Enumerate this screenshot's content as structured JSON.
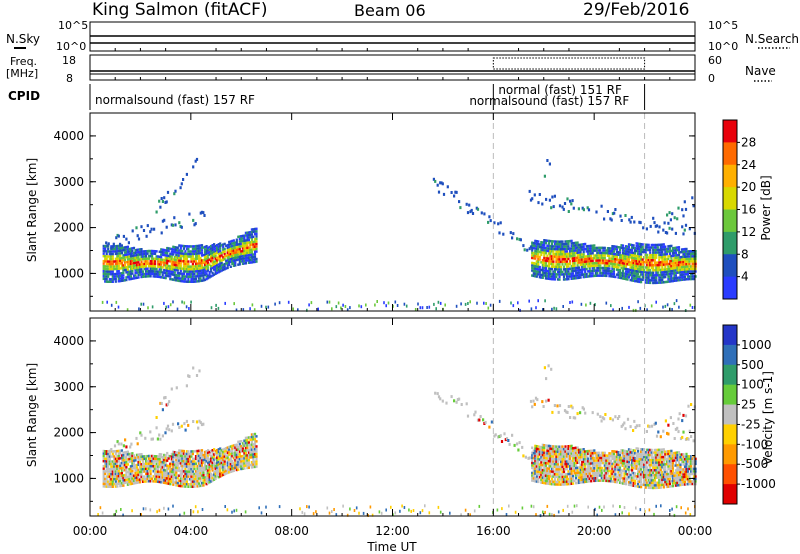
{
  "header": {
    "title": "King Salmon (fitACF)",
    "beam": "Beam 06",
    "date": "29/Feb/2016"
  },
  "status_panels": {
    "nsky_label": "N.Sky",
    "nsky_ticks": [
      "10^5",
      "10^0"
    ],
    "nsearch_label": "N.Search",
    "nsearch_ticks": [
      "10^5",
      "10^0"
    ],
    "freq_label_1": "Freq.",
    "freq_label_2": "[MHz]",
    "freq_ticks": [
      "18",
      "8"
    ],
    "nave_label": "Nave",
    "nave_ticks": [
      "60",
      "0"
    ],
    "cpid_label": "CPID",
    "cpid_entries": [
      {
        "text": "normalsound (fast) 157 RF",
        "start_hour": 0.0
      },
      {
        "text": "normal (fast) 151 RF",
        "start_hour": 16.0
      },
      {
        "text": "normalsound (fast) 157 RF",
        "start_hour": 16.0
      }
    ],
    "mode_change_hours": [
      16.0,
      22.0
    ]
  },
  "chart_data": [
    {
      "type": "heatmap",
      "quantity": "Power",
      "ylabel": "Slant Range [km]",
      "yticks": [
        "4000",
        "3000",
        "2000",
        "1000"
      ],
      "ylim": [
        180,
        4500
      ],
      "xlim_hours": [
        0,
        24
      ],
      "colorbar_label": "Power [dB]",
      "colorbar_ticks": [
        "28",
        "24",
        "20",
        "16",
        "12",
        "8",
        "4"
      ],
      "colorbar_colors": [
        "#e8000b",
        "#ff6a00",
        "#ffb000",
        "#d8d800",
        "#6cc83c",
        "#2f9c6a",
        "#1f4fbe",
        "#2a3cff"
      ],
      "echo_regions": [
        {
          "t0": 0.5,
          "t1": 6.6,
          "r0": 900,
          "r1": 2500
        },
        {
          "t0": 17.5,
          "t1": 24.0,
          "r0": 900,
          "r1": 2500
        },
        {
          "t0": 2.5,
          "t1": 4.5,
          "r0": 2600,
          "r1": 3500
        },
        {
          "t0": 0.2,
          "t1": 24.0,
          "r0": 200,
          "r1": 450
        }
      ]
    },
    {
      "type": "heatmap",
      "quantity": "Velocity",
      "ylabel": "Slant Range [km]",
      "yticks": [
        "4000",
        "3000",
        "2000",
        "1000"
      ],
      "ylim": [
        180,
        4500
      ],
      "xlim_hours": [
        0,
        24
      ],
      "colorbar_label": "Velocity [m s-1]",
      "colorbar_ticks": [
        "1000",
        "500",
        "100",
        "25",
        "-25",
        "-100",
        "-500",
        "-1000"
      ],
      "colorbar_colors": [
        "#2436c8",
        "#2f6fb8",
        "#2f9c6a",
        "#66cc3a",
        "#c0c0c0",
        "#ffd000",
        "#ff9a00",
        "#ff5000",
        "#e00000"
      ],
      "echo_regions": [
        {
          "t0": 0.5,
          "t1": 6.6,
          "r0": 900,
          "r1": 2500
        },
        {
          "t0": 17.5,
          "t1": 24.0,
          "r0": 900,
          "r1": 2500
        },
        {
          "t0": 2.5,
          "t1": 4.5,
          "r0": 2600,
          "r1": 3500
        },
        {
          "t0": 0.2,
          "t1": 24.0,
          "r0": 200,
          "r1": 450
        }
      ]
    }
  ],
  "x_axis": {
    "ticks": [
      "00:00",
      "04:00",
      "08:00",
      "12:00",
      "16:00",
      "20:00",
      "00:00"
    ],
    "label": "Time UT"
  }
}
